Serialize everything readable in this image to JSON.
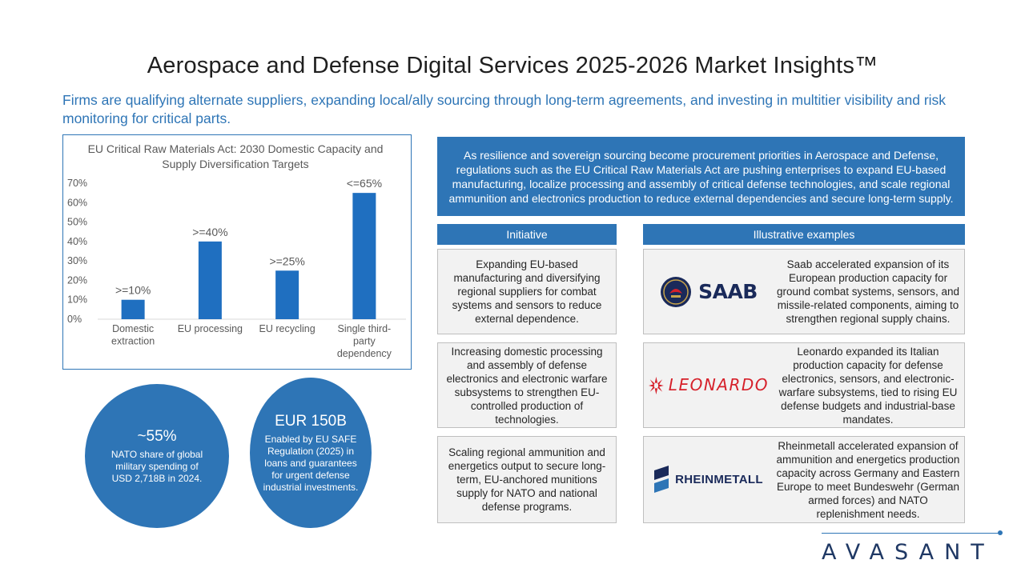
{
  "header": {
    "title": "Aerospace and Defense Digital Services 2025-2026 Market Insights™",
    "subtitle": "Firms are qualifying alternate suppliers, expanding local/ally sourcing through long-term agreements, and investing in multitier visibility and risk monitoring for critical parts."
  },
  "chart_data": {
    "type": "bar",
    "title": "EU Critical Raw Materials Act: 2030 Domestic Capacity and Supply Diversification Targets",
    "categories": [
      "Domestic extraction",
      "EU processing",
      "EU recycling",
      "Single third-party dependency"
    ],
    "category_lines": [
      [
        "Domestic",
        "extraction"
      ],
      [
        "EU processing"
      ],
      [
        "EU recycling"
      ],
      [
        "Single third-",
        "party",
        "dependency"
      ]
    ],
    "values": [
      10,
      40,
      25,
      65
    ],
    "data_labels": [
      ">=10%",
      ">=40%",
      ">=25%",
      "<=65%"
    ],
    "yticks": [
      "0%",
      "10%",
      "20%",
      "30%",
      "40%",
      "50%",
      "60%",
      "70%"
    ],
    "ylim": [
      0,
      70
    ],
    "xlabel": "",
    "ylabel": "",
    "grid": false,
    "bar_color": "#1f6fc0"
  },
  "stats": [
    {
      "value": "~55%",
      "label": "NATO share of global military spending of USD 2,718B in 2024."
    },
    {
      "value": "EUR 150B",
      "label": "Enabled by EU SAFE Regulation (2025) in loans and guarantees for urgent defense industrial investments."
    }
  ],
  "intro": "As resilience and sovereign sourcing become procurement priorities in Aerospace and Defense, regulations such as the EU Critical Raw Materials Act are pushing enterprises to expand EU-based manufacturing, localize processing and assembly of critical defense technologies, and scale regional ammunition and electronics production to reduce external dependencies and secure long-term supply.",
  "columns": {
    "initiative": "Initiative",
    "examples": "Illustrative examples"
  },
  "rows": [
    {
      "initiative": "Expanding EU-based manufacturing and diversifying regional suppliers for combat systems and sensors to reduce external dependence.",
      "logo": "SAAB",
      "logo_icon": "saab-crest-icon",
      "example": "Saab accelerated expansion of its European production capacity for ground combat systems, sensors, and missile-related components, aiming to strengthen regional supply chains."
    },
    {
      "initiative": "Increasing domestic processing and assembly of defense electronics and electronic warfare subsystems to strengthen EU-controlled production of technologies.",
      "logo": "LEONARDO",
      "logo_icon": "leonardo-starburst-icon",
      "example": "Leonardo expanded its Italian production capacity for defense electronics, sensors, and electronic-warfare subsystems, tied to rising EU defense budgets and industrial-base mandates."
    },
    {
      "initiative": "Scaling regional ammunition and energetics output to secure long-term, EU-anchored munitions supply for NATO and national defense programs.",
      "logo": "RHEINMETALL",
      "logo_icon": "rheinmetall-mark-icon",
      "example": "Rheinmetall accelerated expansion of ammunition and energetics production capacity across Germany and Eastern Europe to meet Bundeswehr (German armed forces) and NATO replenishment needs."
    }
  ],
  "brand": {
    "name": "AVASANT",
    "accent": "#2e75b6"
  }
}
